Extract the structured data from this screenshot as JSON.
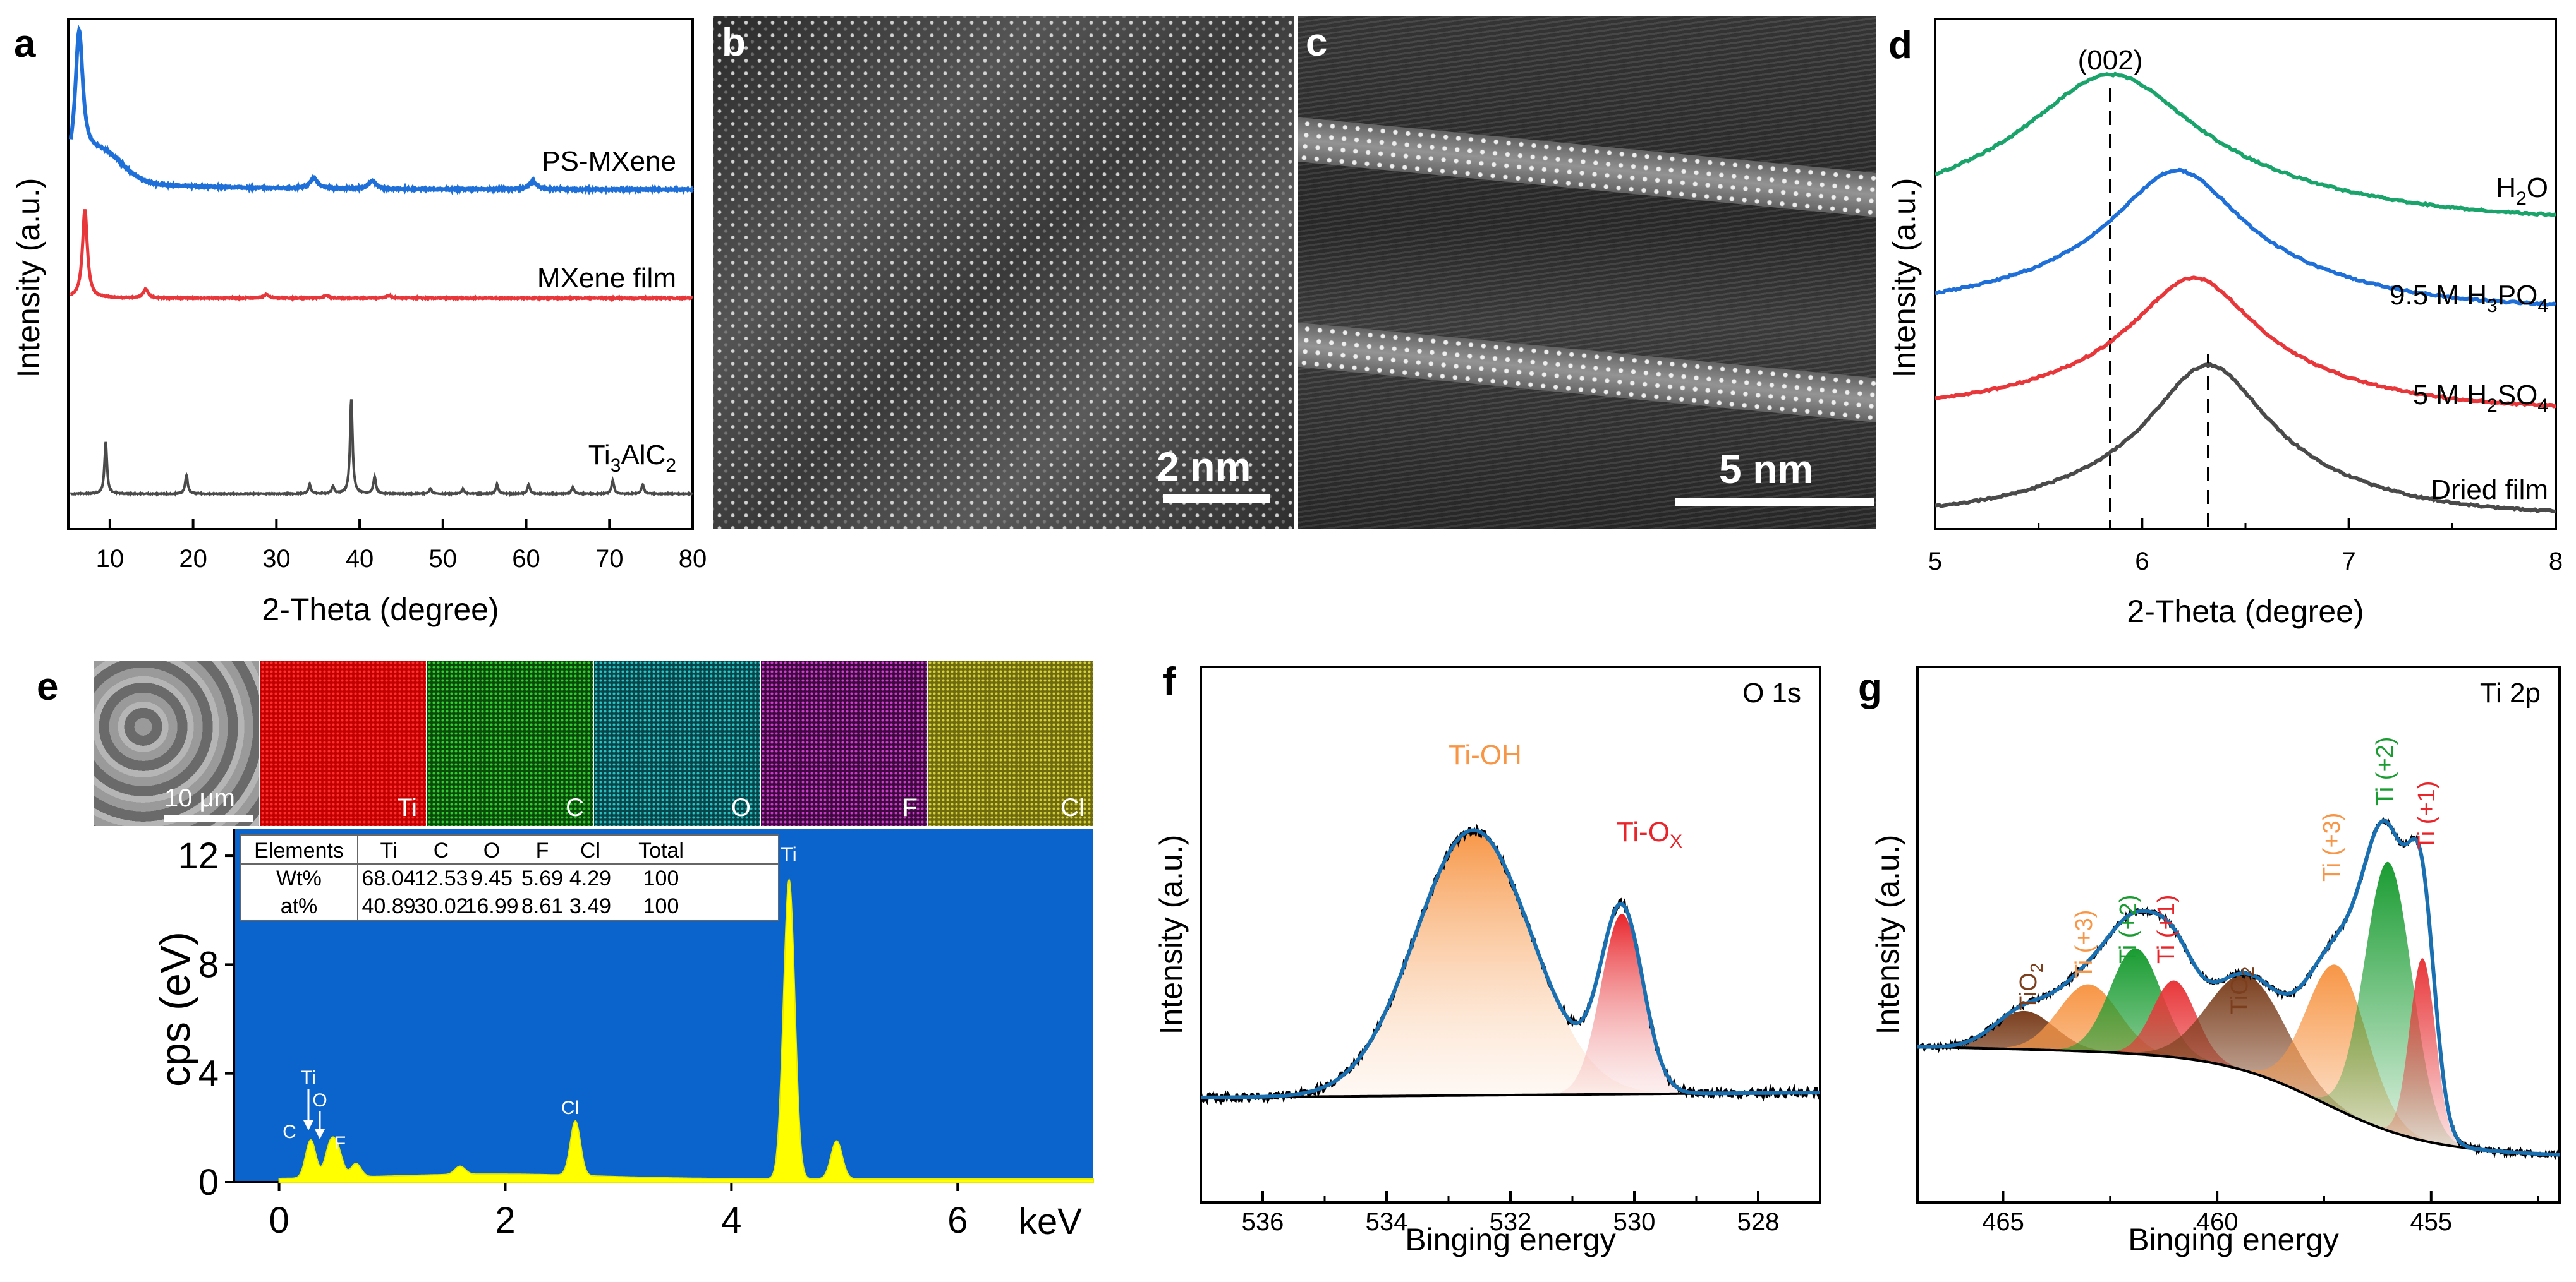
{
  "panels": {
    "a": {
      "letter": "a",
      "ylabel": "Intensity (a.u.)",
      "xlabel": "2-Theta (degree)",
      "xticks": [
        "10",
        "20",
        "30",
        "40",
        "50",
        "60",
        "70",
        "80"
      ],
      "series_labels": [
        "PS-MXene",
        "MXene film",
        "Ti3AlC2"
      ],
      "ti3alc2_label": {
        "main": "Ti",
        "sub1": "3",
        "mid": "AlC",
        "sub2": "2"
      }
    },
    "b": {
      "letter": "b",
      "scale": "2 nm"
    },
    "c": {
      "letter": "c",
      "scale": "5 nm"
    },
    "d": {
      "letter": "d",
      "ylabel": "Intensity (a.u.)",
      "xlabel": "2-Theta (degree)",
      "xticks": [
        "5",
        "6",
        "7",
        "8"
      ],
      "peak_label": "(002)",
      "labels": {
        "h2o": {
          "a": "H",
          "s": "2",
          "b": "O"
        },
        "h3po4": {
          "a": "9.5 M H",
          "s1": "3",
          "b": "PO",
          "s2": "4"
        },
        "h2so4": {
          "a": "5 M H",
          "s1": "2",
          "b": "SO",
          "s2": "4"
        },
        "dried": "Dried film"
      }
    },
    "e": {
      "letter": "e",
      "sem_scale": "10 μm",
      "maps": [
        "Ti",
        "C",
        "O",
        "F",
        "Cl"
      ],
      "ylabel": "cps (eV)",
      "xunit": "keV",
      "xticks": [
        "0",
        "2",
        "4",
        "6"
      ],
      "yticks": [
        "0",
        "4",
        "8",
        "12"
      ],
      "peaks": [
        "Ti",
        "C",
        "Ti",
        "O",
        "F",
        "Cl"
      ],
      "table": {
        "header": [
          "Elements",
          "Ti",
          "C",
          "O",
          "F",
          "Cl",
          "Total"
        ],
        "rows": [
          [
            "Wt%",
            "68.04",
            "12.53",
            "9.45",
            "5.69",
            "4.29",
            "100"
          ],
          [
            "at%",
            "40.89",
            "30.02",
            "16.99",
            "8.61",
            "3.49",
            "100"
          ]
        ]
      }
    },
    "f": {
      "letter": "f",
      "title": "O 1s",
      "ylabel": "Intensity (a.u.)",
      "xlabel": "Binging energy",
      "xticks": [
        "536",
        "534",
        "532",
        "530",
        "528"
      ],
      "peak1": "Ti-OH",
      "peak2": {
        "a": "Ti-O",
        "s": "X"
      }
    },
    "g": {
      "letter": "g",
      "title": "Ti 2p",
      "ylabel": "Intensity (a.u.)",
      "xlabel": "Binging energy",
      "xticks": [
        "465",
        "460",
        "455"
      ],
      "tio2": {
        "a": "TiO",
        "s": "2"
      },
      "ti3": "Ti (+3)",
      "ti2": "Ti (+2)",
      "ti1": "Ti (+1)"
    }
  },
  "chart_data": [
    {
      "type": "line",
      "panel": "a",
      "xlabel": "2-Theta (degree)",
      "ylabel": "Intensity (a.u.)",
      "xlim": [
        5,
        80
      ],
      "series": [
        {
          "name": "PS-MXene",
          "color": "#1f6fd8",
          "peaks": [
            [
              6.3,
              1.0
            ],
            [
              34.5,
              0.08
            ],
            [
              41.5,
              0.06
            ],
            [
              60.8,
              0.06
            ]
          ]
        },
        {
          "name": "MXene film",
          "color": "#e8373a",
          "peaks": [
            [
              7.0,
              1.0
            ],
            [
              14.3,
              0.1
            ],
            [
              28.8,
              0.04
            ],
            [
              36.0,
              0.03
            ],
            [
              43.5,
              0.03
            ]
          ]
        },
        {
          "name": "Ti3AlC2",
          "color": "#4a4a4a",
          "peaks": [
            [
              9.5,
              0.55
            ],
            [
              19.2,
              0.2
            ],
            [
              34.0,
              0.1
            ],
            [
              36.8,
              0.08
            ],
            [
              39.0,
              1.0
            ],
            [
              41.8,
              0.18
            ],
            [
              48.5,
              0.06
            ],
            [
              52.4,
              0.05
            ],
            [
              56.5,
              0.1
            ],
            [
              60.3,
              0.1
            ],
            [
              65.6,
              0.07
            ],
            [
              70.4,
              0.14
            ],
            [
              74.0,
              0.1
            ]
          ]
        }
      ]
    },
    {
      "type": "line",
      "panel": "d",
      "xlabel": "2-Theta (degree)",
      "ylabel": "Intensity (a.u.)",
      "xlim": [
        5,
        8
      ],
      "reference_lines": [
        5.85,
        6.32
      ],
      "series": [
        {
          "name": "H2O",
          "color": "#1aa36a",
          "center": 5.85,
          "width": 0.55
        },
        {
          "name": "9.5 M H3PO4",
          "color": "#1f6fd8",
          "center": 6.17,
          "width": 0.42
        },
        {
          "name": "5 M H2SO4",
          "color": "#e8373a",
          "center": 6.25,
          "width": 0.4
        },
        {
          "name": "Dried film",
          "color": "#4a4a4a",
          "center": 6.32,
          "width": 0.38
        }
      ]
    },
    {
      "type": "line",
      "panel": "e",
      "xlabel": "keV",
      "ylabel": "cps (eV)",
      "xlim": [
        -0.4,
        7.2
      ],
      "ylim": [
        0,
        13
      ],
      "peaks": [
        [
          0.28,
          1.4
        ],
        [
          0.45,
          1.1
        ],
        [
          0.52,
          0.9
        ],
        [
          0.68,
          0.5
        ],
        [
          1.6,
          0.3
        ],
        [
          2.62,
          2.0
        ],
        [
          4.51,
          11.0
        ],
        [
          4.93,
          1.4
        ]
      ]
    },
    {
      "type": "line",
      "panel": "f",
      "xlabel": "Binging energy",
      "xlim": [
        537,
        527
      ],
      "components": [
        {
          "name": "Ti-OH",
          "center": 532.6,
          "height": 1.0,
          "width": 1.3,
          "color": "#f79646"
        },
        {
          "name": "Ti-Ox",
          "center": 530.2,
          "height": 0.68,
          "width": 0.45,
          "color": "#e8373a"
        }
      ]
    },
    {
      "type": "line",
      "panel": "g",
      "xlabel": "Binging energy",
      "xlim": [
        467,
        452
      ],
      "components": [
        {
          "name": "TiO2",
          "center": 464.5,
          "height": 0.08,
          "width": 0.7,
          "color": "#7b3f1e"
        },
        {
          "name": "Ti (+3)",
          "center": 463.0,
          "height": 0.14,
          "width": 0.7,
          "color": "#f79646"
        },
        {
          "name": "Ti (+2)",
          "center": 461.9,
          "height": 0.22,
          "width": 0.6,
          "color": "#1a9c32"
        },
        {
          "name": "Ti (+1)",
          "center": 461.0,
          "height": 0.16,
          "width": 0.5,
          "color": "#e8373a"
        },
        {
          "name": "TiO2",
          "center": 459.3,
          "height": 0.2,
          "width": 0.9,
          "color": "#7b3f1e"
        },
        {
          "name": "Ti (+3)",
          "center": 457.2,
          "height": 0.3,
          "width": 0.7,
          "color": "#f79646"
        },
        {
          "name": "Ti (+2)",
          "center": 456.0,
          "height": 0.56,
          "width": 0.55,
          "color": "#1a9c32"
        },
        {
          "name": "Ti (+1)",
          "center": 455.2,
          "height": 0.38,
          "width": 0.3,
          "color": "#e8373a"
        }
      ]
    }
  ]
}
